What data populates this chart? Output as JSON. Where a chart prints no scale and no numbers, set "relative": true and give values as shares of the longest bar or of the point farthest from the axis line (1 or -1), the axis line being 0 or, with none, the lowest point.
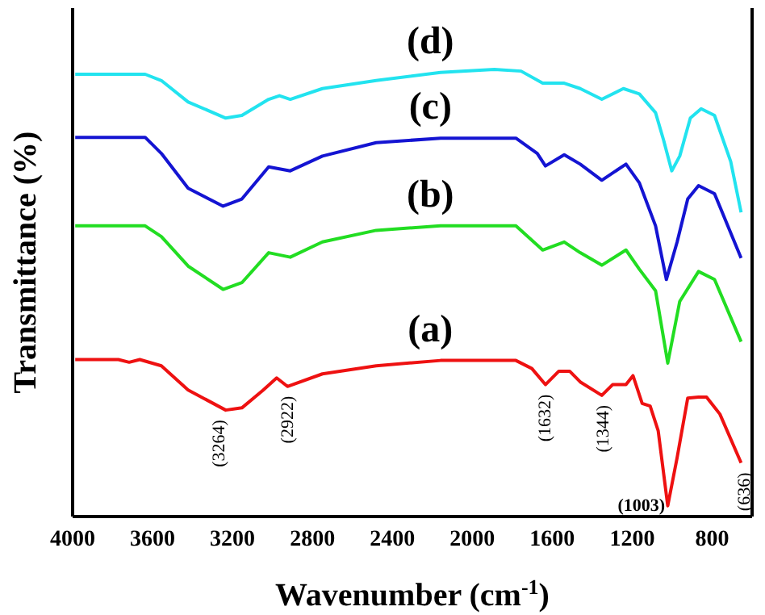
{
  "chart_data": {
    "type": "line",
    "xlabel": "Wavenumber (cm$^{-1}$)",
    "ylabel": "Transmittance (%)",
    "xlim": [
      4000,
      600
    ],
    "xticks": [
      4000,
      3600,
      3200,
      2800,
      2400,
      2000,
      1600,
      1200,
      800
    ],
    "relative": true,
    "marker": "none",
    "line_style": "solid",
    "series": [
      {
        "name": "(d)",
        "color": "#22e3ef",
        "x": [
          3987,
          3637,
          3556,
          3422,
          3234,
          3153,
          3019,
          2965,
          2911,
          2750,
          2481,
          2159,
          1890,
          1756,
          1648,
          1540,
          1460,
          1352,
          1244,
          1164,
          1083,
          1043,
          1002,
          962,
          909,
          855,
          788,
          707,
          655
        ],
        "values": [
          0.989,
          0.989,
          0.975,
          0.927,
          0.891,
          0.897,
          0.933,
          0.941,
          0.933,
          0.957,
          0.975,
          0.993,
          1,
          0.996,
          0.969,
          0.969,
          0.957,
          0.933,
          0.957,
          0.945,
          0.903,
          0.842,
          0.773,
          0.806,
          0.891,
          0.912,
          0.897,
          0.794,
          0.68
        ]
      },
      {
        "name": "(c)",
        "color": "#1414d2",
        "x": [
          3987,
          3637,
          3556,
          3422,
          3247,
          3153,
          3019,
          2911,
          2750,
          2481,
          2159,
          1782,
          1675,
          1634,
          1540,
          1460,
          1352,
          1231,
          1164,
          1083,
          1029,
          975,
          922,
          868,
          788,
          655
        ],
        "values": [
          0.848,
          0.848,
          0.812,
          0.734,
          0.694,
          0.71,
          0.782,
          0.773,
          0.806,
          0.836,
          0.846,
          0.846,
          0.812,
          0.784,
          0.809,
          0.788,
          0.752,
          0.788,
          0.746,
          0.65,
          0.53,
          0.614,
          0.71,
          0.74,
          0.722,
          0.578
        ]
      },
      {
        "name": "(b)",
        "color": "#22dd22",
        "x": [
          3987,
          3637,
          3556,
          3422,
          3247,
          3153,
          3019,
          2911,
          2750,
          2481,
          2159,
          1782,
          1648,
          1540,
          1460,
          1352,
          1231,
          1164,
          1083,
          1022,
          962,
          868,
          788,
          655
        ],
        "values": [
          0.65,
          0.65,
          0.626,
          0.56,
          0.508,
          0.523,
          0.59,
          0.58,
          0.614,
          0.64,
          0.65,
          0.65,
          0.596,
          0.614,
          0.59,
          0.562,
          0.596,
          0.553,
          0.505,
          0.343,
          0.481,
          0.548,
          0.53,
          0.391
        ]
      },
      {
        "name": "(a)",
        "color": "#ee1111",
        "x": [
          3987,
          3771,
          3717,
          3664,
          3556,
          3422,
          3234,
          3153,
          3046,
          2979,
          2925,
          2750,
          2481,
          2159,
          1782,
          1702,
          1634,
          1567,
          1513,
          1460,
          1352,
          1298,
          1231,
          1196,
          1150,
          1110,
          1070,
          1022,
          975,
          922,
          868,
          828,
          761,
          655
        ],
        "values": [
          0.351,
          0.351,
          0.345,
          0.351,
          0.337,
          0.283,
          0.238,
          0.243,
          0.283,
          0.31,
          0.291,
          0.319,
          0.337,
          0.349,
          0.349,
          0.331,
          0.295,
          0.325,
          0.325,
          0.301,
          0.271,
          0.295,
          0.295,
          0.315,
          0.253,
          0.247,
          0.192,
          0.024,
          0.132,
          0.265,
          0.267,
          0.267,
          0.229,
          0.12
        ]
      }
    ],
    "annotations": [
      {
        "text": "(3264)",
        "x": 3264,
        "y": 0.238
      },
      {
        "text": "(2922)",
        "x": 2922,
        "y": 0.291
      },
      {
        "text": "(1632)",
        "x": 1632,
        "y": 0.295
      },
      {
        "text": "(1344)",
        "x": 1344,
        "y": 0.271
      },
      {
        "text": "(1003)",
        "x": 1003,
        "y": 0.024
      },
      {
        "text": "(636)",
        "x": 636,
        "y": 0.12
      }
    ]
  }
}
